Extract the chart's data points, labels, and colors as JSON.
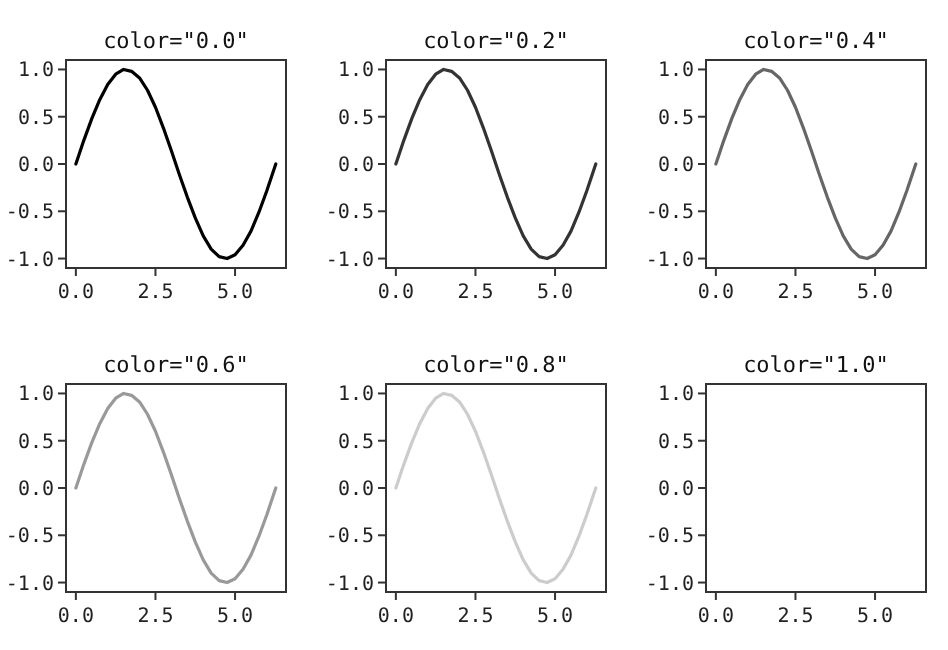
{
  "chart_data": [
    {
      "type": "line",
      "title": "color=\"0.0\"",
      "x": [
        0,
        0.25,
        0.5,
        0.75,
        1,
        1.25,
        1.5,
        1.75,
        2,
        2.25,
        2.5,
        2.75,
        3,
        3.25,
        3.5,
        3.75,
        4,
        4.25,
        4.5,
        4.75,
        5,
        5.25,
        5.5,
        5.75,
        6,
        6.25,
        6.28
      ],
      "series": [
        {
          "color": "#000000",
          "values": [
            0,
            0.25,
            0.48,
            0.68,
            0.84,
            0.95,
            1,
            0.98,
            0.91,
            0.78,
            0.6,
            0.38,
            0.14,
            -0.11,
            -0.35,
            -0.57,
            -0.76,
            -0.9,
            -0.98,
            -1,
            -0.96,
            -0.86,
            -0.71,
            -0.51,
            -0.28,
            -0.03,
            0
          ]
        }
      ],
      "xlim": [
        -0.31,
        6.6
      ],
      "ylim": [
        -1.1,
        1.1
      ],
      "xticks": [
        {
          "value": 0,
          "label": "0.0"
        },
        {
          "value": 2.5,
          "label": "2.5"
        },
        {
          "value": 5,
          "label": "5.0"
        }
      ],
      "yticks": [
        {
          "value": -1,
          "label": "-1.0"
        },
        {
          "value": -0.5,
          "label": "-0.5"
        },
        {
          "value": 0,
          "label": "0.0"
        },
        {
          "value": 0.5,
          "label": "0.5"
        },
        {
          "value": 1,
          "label": "1.0"
        }
      ]
    },
    {
      "type": "line",
      "title": "color=\"0.2\"",
      "x": [
        0,
        0.25,
        0.5,
        0.75,
        1,
        1.25,
        1.5,
        1.75,
        2,
        2.25,
        2.5,
        2.75,
        3,
        3.25,
        3.5,
        3.75,
        4,
        4.25,
        4.5,
        4.75,
        5,
        5.25,
        5.5,
        5.75,
        6,
        6.25,
        6.28
      ],
      "series": [
        {
          "color": "#333333",
          "values": [
            0,
            0.25,
            0.48,
            0.68,
            0.84,
            0.95,
            1,
            0.98,
            0.91,
            0.78,
            0.6,
            0.38,
            0.14,
            -0.11,
            -0.35,
            -0.57,
            -0.76,
            -0.9,
            -0.98,
            -1,
            -0.96,
            -0.86,
            -0.71,
            -0.51,
            -0.28,
            -0.03,
            0
          ]
        }
      ],
      "xlim": [
        -0.31,
        6.6
      ],
      "ylim": [
        -1.1,
        1.1
      ],
      "xticks": [
        {
          "value": 0,
          "label": "0.0"
        },
        {
          "value": 2.5,
          "label": "2.5"
        },
        {
          "value": 5,
          "label": "5.0"
        }
      ],
      "yticks": [
        {
          "value": -1,
          "label": "-1.0"
        },
        {
          "value": -0.5,
          "label": "-0.5"
        },
        {
          "value": 0,
          "label": "0.0"
        },
        {
          "value": 0.5,
          "label": "0.5"
        },
        {
          "value": 1,
          "label": "1.0"
        }
      ]
    },
    {
      "type": "line",
      "title": "color=\"0.4\"",
      "x": [
        0,
        0.25,
        0.5,
        0.75,
        1,
        1.25,
        1.5,
        1.75,
        2,
        2.25,
        2.5,
        2.75,
        3,
        3.25,
        3.5,
        3.75,
        4,
        4.25,
        4.5,
        4.75,
        5,
        5.25,
        5.5,
        5.75,
        6,
        6.25,
        6.28
      ],
      "series": [
        {
          "color": "#666666",
          "values": [
            0,
            0.25,
            0.48,
            0.68,
            0.84,
            0.95,
            1,
            0.98,
            0.91,
            0.78,
            0.6,
            0.38,
            0.14,
            -0.11,
            -0.35,
            -0.57,
            -0.76,
            -0.9,
            -0.98,
            -1,
            -0.96,
            -0.86,
            -0.71,
            -0.51,
            -0.28,
            -0.03,
            0
          ]
        }
      ],
      "xlim": [
        -0.31,
        6.6
      ],
      "ylim": [
        -1.1,
        1.1
      ],
      "xticks": [
        {
          "value": 0,
          "label": "0.0"
        },
        {
          "value": 2.5,
          "label": "2.5"
        },
        {
          "value": 5,
          "label": "5.0"
        }
      ],
      "yticks": [
        {
          "value": -1,
          "label": "-1.0"
        },
        {
          "value": -0.5,
          "label": "-0.5"
        },
        {
          "value": 0,
          "label": "0.0"
        },
        {
          "value": 0.5,
          "label": "0.5"
        },
        {
          "value": 1,
          "label": "1.0"
        }
      ]
    },
    {
      "type": "line",
      "title": "color=\"0.6\"",
      "x": [
        0,
        0.25,
        0.5,
        0.75,
        1,
        1.25,
        1.5,
        1.75,
        2,
        2.25,
        2.5,
        2.75,
        3,
        3.25,
        3.5,
        3.75,
        4,
        4.25,
        4.5,
        4.75,
        5,
        5.25,
        5.5,
        5.75,
        6,
        6.25,
        6.28
      ],
      "series": [
        {
          "color": "#999999",
          "values": [
            0,
            0.25,
            0.48,
            0.68,
            0.84,
            0.95,
            1,
            0.98,
            0.91,
            0.78,
            0.6,
            0.38,
            0.14,
            -0.11,
            -0.35,
            -0.57,
            -0.76,
            -0.9,
            -0.98,
            -1,
            -0.96,
            -0.86,
            -0.71,
            -0.51,
            -0.28,
            -0.03,
            0
          ]
        }
      ],
      "xlim": [
        -0.31,
        6.6
      ],
      "ylim": [
        -1.1,
        1.1
      ],
      "xticks": [
        {
          "value": 0,
          "label": "0.0"
        },
        {
          "value": 2.5,
          "label": "2.5"
        },
        {
          "value": 5,
          "label": "5.0"
        }
      ],
      "yticks": [
        {
          "value": -1,
          "label": "-1.0"
        },
        {
          "value": -0.5,
          "label": "-0.5"
        },
        {
          "value": 0,
          "label": "0.0"
        },
        {
          "value": 0.5,
          "label": "0.5"
        },
        {
          "value": 1,
          "label": "1.0"
        }
      ]
    },
    {
      "type": "line",
      "title": "color=\"0.8\"",
      "x": [
        0,
        0.25,
        0.5,
        0.75,
        1,
        1.25,
        1.5,
        1.75,
        2,
        2.25,
        2.5,
        2.75,
        3,
        3.25,
        3.5,
        3.75,
        4,
        4.25,
        4.5,
        4.75,
        5,
        5.25,
        5.5,
        5.75,
        6,
        6.25,
        6.28
      ],
      "series": [
        {
          "color": "#cccccc",
          "values": [
            0,
            0.25,
            0.48,
            0.68,
            0.84,
            0.95,
            1,
            0.98,
            0.91,
            0.78,
            0.6,
            0.38,
            0.14,
            -0.11,
            -0.35,
            -0.57,
            -0.76,
            -0.9,
            -0.98,
            -1,
            -0.96,
            -0.86,
            -0.71,
            -0.51,
            -0.28,
            -0.03,
            0
          ]
        }
      ],
      "xlim": [
        -0.31,
        6.6
      ],
      "ylim": [
        -1.1,
        1.1
      ],
      "xticks": [
        {
          "value": 0,
          "label": "0.0"
        },
        {
          "value": 2.5,
          "label": "2.5"
        },
        {
          "value": 5,
          "label": "5.0"
        }
      ],
      "yticks": [
        {
          "value": -1,
          "label": "-1.0"
        },
        {
          "value": -0.5,
          "label": "-0.5"
        },
        {
          "value": 0,
          "label": "0.0"
        },
        {
          "value": 0.5,
          "label": "0.5"
        },
        {
          "value": 1,
          "label": "1.0"
        }
      ]
    },
    {
      "type": "line",
      "title": "color=\"1.0\"",
      "xlim": [
        -0.31,
        6.6
      ],
      "ylim": [
        -1.1,
        1.1
      ],
      "xticks": [
        {
          "value": 0,
          "label": "0.0"
        },
        {
          "value": 2.5,
          "label": "2.5"
        },
        {
          "value": 5,
          "label": "5.0"
        }
      ],
      "yticks": [
        {
          "value": -1,
          "label": "-1.0"
        },
        {
          "value": -0.5,
          "label": "-0.5"
        },
        {
          "value": 0,
          "label": "0.0"
        },
        {
          "value": 0.5,
          "label": "0.5"
        },
        {
          "value": 1,
          "label": "1.0"
        }
      ]
    }
  ]
}
